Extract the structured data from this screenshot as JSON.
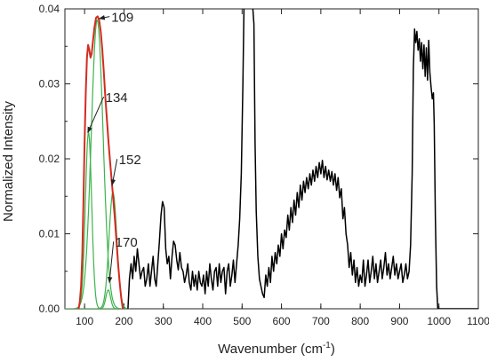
{
  "chart_data": {
    "type": "line",
    "xlabel": "Wavenumber (cm",
    "xlabel_sup": "-1",
    "xlabel_end": ")",
    "ylabel": "Normalized Intensity",
    "xlim": [
      50,
      1100
    ],
    "ylim": [
      0,
      0.04
    ],
    "x_ticks": [
      100,
      200,
      300,
      400,
      500,
      600,
      700,
      800,
      900,
      1000,
      1100
    ],
    "y_ticks": [
      0.0,
      0.01,
      0.02,
      0.03,
      0.04
    ],
    "y_tick_labels": [
      "0.00",
      "0.01",
      "0.02",
      "0.03",
      "0.04"
    ],
    "grid": false,
    "series": [
      {
        "role": "spectrum",
        "color": "#000000",
        "points": [
          [
            210,
            0.0
          ],
          [
            214,
            0.004
          ],
          [
            218,
            0.006
          ],
          [
            222,
            0.004
          ],
          [
            226,
            0.007
          ],
          [
            230,
            0.005
          ],
          [
            234,
            0.008
          ],
          [
            238,
            0.006
          ],
          [
            242,
            0.004
          ],
          [
            246,
            0.005
          ],
          [
            250,
            0.0055
          ],
          [
            254,
            0.003
          ],
          [
            258,
            0.004
          ],
          [
            262,
            0.006
          ],
          [
            266,
            0.003
          ],
          [
            270,
            0.005
          ],
          [
            274,
            0.007
          ],
          [
            278,
            0.004
          ],
          [
            282,
            0.003
          ],
          [
            286,
            0.006
          ],
          [
            290,
            0.009
          ],
          [
            294,
            0.0125
          ],
          [
            298,
            0.0143
          ],
          [
            302,
            0.0135
          ],
          [
            306,
            0.008
          ],
          [
            310,
            0.006
          ],
          [
            314,
            0.007
          ],
          [
            318,
            0.004
          ],
          [
            322,
            0.007
          ],
          [
            326,
            0.009
          ],
          [
            330,
            0.0085
          ],
          [
            334,
            0.0065
          ],
          [
            338,
            0.0052
          ],
          [
            342,
            0.0075
          ],
          [
            346,
            0.0055
          ],
          [
            350,
            0.005
          ],
          [
            354,
            0.0035
          ],
          [
            358,
            0.0045
          ],
          [
            362,
            0.006
          ],
          [
            366,
            0.0035
          ],
          [
            370,
            0.0025
          ],
          [
            374,
            0.005
          ],
          [
            378,
            0.003
          ],
          [
            382,
            0.0045
          ],
          [
            386,
            0.0025
          ],
          [
            390,
            0.005
          ],
          [
            394,
            0.0035
          ],
          [
            398,
            0.003
          ],
          [
            402,
            0.0045
          ],
          [
            406,
            0.002
          ],
          [
            410,
            0.005
          ],
          [
            414,
            0.003
          ],
          [
            418,
            0.006
          ],
          [
            422,
            0.004
          ],
          [
            426,
            0.0025
          ],
          [
            430,
            0.005
          ],
          [
            434,
            0.0055
          ],
          [
            438,
            0.003
          ],
          [
            442,
            0.006
          ],
          [
            446,
            0.0035
          ],
          [
            450,
            0.005
          ],
          [
            454,
            0.0055
          ],
          [
            458,
            0.002
          ],
          [
            462,
            0.005
          ],
          [
            466,
            0.006
          ],
          [
            470,
            0.003
          ],
          [
            474,
            0.0045
          ],
          [
            478,
            0.0065
          ],
          [
            482,
            0.0035
          ],
          [
            486,
            0.006
          ],
          [
            490,
            0.0085
          ],
          [
            494,
            0.012
          ],
          [
            498,
            0.018
          ],
          [
            502,
            0.03
          ],
          [
            505,
            0.041
          ],
          [
            508,
            0.041
          ],
          [
            512,
            0.041
          ],
          [
            516,
            0.041
          ],
          [
            520,
            0.041
          ],
          [
            524,
            0.041
          ],
          [
            526,
            0.041
          ],
          [
            530,
            0.038
          ],
          [
            533,
            0.022
          ],
          [
            536,
            0.013
          ],
          [
            540,
            0.007
          ],
          [
            544,
            0.004
          ],
          [
            548,
            0.003
          ],
          [
            552,
            0.002
          ],
          [
            556,
            0.0015
          ],
          [
            560,
            0.0045
          ],
          [
            564,
            0.003
          ],
          [
            568,
            0.0055
          ],
          [
            572,
            0.0035
          ],
          [
            576,
            0.007
          ],
          [
            580,
            0.005
          ],
          [
            584,
            0.0075
          ],
          [
            588,
            0.006
          ],
          [
            592,
            0.0085
          ],
          [
            596,
            0.007
          ],
          [
            600,
            0.01
          ],
          [
            604,
            0.008
          ],
          [
            608,
            0.0105
          ],
          [
            612,
            0.0095
          ],
          [
            616,
            0.0125
          ],
          [
            620,
            0.0105
          ],
          [
            624,
            0.0135
          ],
          [
            628,
            0.0115
          ],
          [
            632,
            0.0145
          ],
          [
            636,
            0.0125
          ],
          [
            640,
            0.0155
          ],
          [
            644,
            0.0135
          ],
          [
            648,
            0.0165
          ],
          [
            652,
            0.0145
          ],
          [
            656,
            0.017
          ],
          [
            660,
            0.0155
          ],
          [
            664,
            0.0175
          ],
          [
            668,
            0.016
          ],
          [
            672,
            0.018
          ],
          [
            676,
            0.0165
          ],
          [
            680,
            0.0185
          ],
          [
            684,
            0.017
          ],
          [
            688,
            0.019
          ],
          [
            692,
            0.0175
          ],
          [
            696,
            0.0195
          ],
          [
            700,
            0.018
          ],
          [
            704,
            0.0198
          ],
          [
            708,
            0.0175
          ],
          [
            712,
            0.019
          ],
          [
            716,
            0.0172
          ],
          [
            720,
            0.0185
          ],
          [
            724,
            0.017
          ],
          [
            728,
            0.0183
          ],
          [
            732,
            0.0165
          ],
          [
            736,
            0.018
          ],
          [
            740,
            0.0158
          ],
          [
            744,
            0.0175
          ],
          [
            748,
            0.0148
          ],
          [
            752,
            0.016
          ],
          [
            756,
            0.012
          ],
          [
            760,
            0.0135
          ],
          [
            764,
            0.01
          ],
          [
            768,
            0.0085
          ],
          [
            772,
            0.0055
          ],
          [
            776,
            0.0075
          ],
          [
            780,
            0.0045
          ],
          [
            784,
            0.0065
          ],
          [
            788,
            0.0035
          ],
          [
            792,
            0.0055
          ],
          [
            796,
            0.003
          ],
          [
            800,
            0.0045
          ],
          [
            804,
            0.0035
          ],
          [
            808,
            0.0065
          ],
          [
            812,
            0.003
          ],
          [
            816,
            0.0045
          ],
          [
            820,
            0.0065
          ],
          [
            824,
            0.0035
          ],
          [
            828,
            0.005
          ],
          [
            832,
            0.007
          ],
          [
            836,
            0.004
          ],
          [
            840,
            0.006
          ],
          [
            844,
            0.0035
          ],
          [
            848,
            0.005
          ],
          [
            852,
            0.0065
          ],
          [
            856,
            0.004
          ],
          [
            860,
            0.0055
          ],
          [
            864,
            0.0075
          ],
          [
            868,
            0.0045
          ],
          [
            872,
            0.006
          ],
          [
            876,
            0.004
          ],
          [
            880,
            0.0055
          ],
          [
            884,
            0.007
          ],
          [
            888,
            0.0045
          ],
          [
            892,
            0.006
          ],
          [
            896,
            0.004
          ],
          [
            900,
            0.005
          ],
          [
            904,
            0.006
          ],
          [
            908,
            0.0035
          ],
          [
            912,
            0.0045
          ],
          [
            916,
            0.006
          ],
          [
            920,
            0.004
          ],
          [
            924,
            0.005
          ],
          [
            928,
            0.0085
          ],
          [
            932,
            0.018
          ],
          [
            935,
            0.032
          ],
          [
            938,
            0.0373
          ],
          [
            941,
            0.0355
          ],
          [
            944,
            0.037
          ],
          [
            947,
            0.0345
          ],
          [
            950,
            0.036
          ],
          [
            953,
            0.033
          ],
          [
            956,
            0.0355
          ],
          [
            959,
            0.032
          ],
          [
            962,
            0.0352
          ],
          [
            965,
            0.031
          ],
          [
            968,
            0.0348
          ],
          [
            971,
            0.0305
          ],
          [
            974,
            0.0358
          ],
          [
            977,
            0.0315
          ],
          [
            980,
            0.0295
          ],
          [
            983,
            0.028
          ],
          [
            986,
            0.0288
          ],
          [
            988,
            0.0245
          ],
          [
            991,
            0.012
          ],
          [
            994,
            0.003
          ],
          [
            997,
            0.0
          ],
          [
            1000,
            0.0
          ],
          [
            1050,
            0.0
          ],
          [
            1100,
            0.0
          ]
        ]
      },
      {
        "role": "envelope",
        "color": "#d42b1f",
        "points": [
          [
            85,
            0.0
          ],
          [
            88,
            0.001
          ],
          [
            91,
            0.003
          ],
          [
            94,
            0.007
          ],
          [
            97,
            0.014
          ],
          [
            100,
            0.022
          ],
          [
            103,
            0.029
          ],
          [
            106,
            0.0335
          ],
          [
            109,
            0.0352
          ],
          [
            112,
            0.0345
          ],
          [
            115,
            0.0335
          ],
          [
            118,
            0.034
          ],
          [
            121,
            0.0355
          ],
          [
            125,
            0.0375
          ],
          [
            129,
            0.0388
          ],
          [
            133,
            0.039
          ],
          [
            137,
            0.0385
          ],
          [
            141,
            0.037
          ],
          [
            145,
            0.0345
          ],
          [
            149,
            0.0315
          ],
          [
            153,
            0.028
          ],
          [
            157,
            0.025
          ],
          [
            161,
            0.022
          ],
          [
            165,
            0.0195
          ],
          [
            169,
            0.017
          ],
          [
            173,
            0.0145
          ],
          [
            177,
            0.012
          ],
          [
            181,
            0.009
          ],
          [
            185,
            0.006
          ],
          [
            189,
            0.0035
          ],
          [
            193,
            0.0015
          ],
          [
            197,
            0.0
          ],
          [
            200,
            0.0
          ]
        ]
      }
    ],
    "components": [
      {
        "label": "109",
        "center": 132,
        "amplitude": 0.0385,
        "width": 15
      },
      {
        "label": "134",
        "center": 110,
        "amplitude": 0.0235,
        "width": 8
      },
      {
        "label": "152",
        "center": 172,
        "amplitude": 0.0155,
        "width": 10
      },
      {
        "label": "170",
        "center": 160,
        "amplitude": 0.0025,
        "width": 6
      }
    ],
    "component_color": "#3cb44b",
    "annotations": [
      {
        "text": "109",
        "text_at": [
          168,
          0.0385
        ],
        "arrow_to": [
          137,
          0.0387
        ]
      },
      {
        "text": "134",
        "text_at": [
          153,
          0.0278
        ],
        "arrow_to": [
          108,
          0.0235
        ]
      },
      {
        "text": "152",
        "text_at": [
          187,
          0.0195
        ],
        "arrow_to": [
          170,
          0.0165
        ]
      },
      {
        "text": "170",
        "text_at": [
          178,
          0.0085
        ],
        "arrow_to": [
          163,
          0.0035
        ]
      }
    ]
  }
}
